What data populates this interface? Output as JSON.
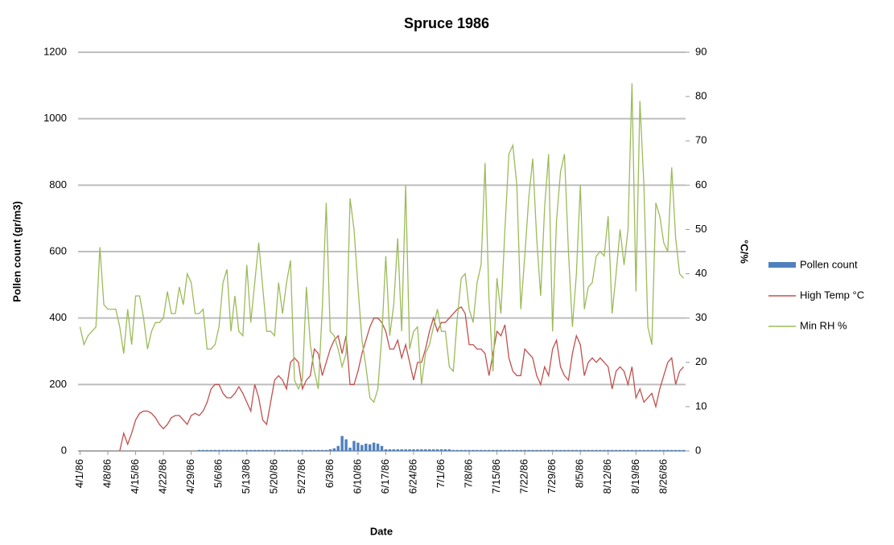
{
  "chart_data": {
    "type": "bar-line",
    "title": "Spruce 1986",
    "x_label": "Date",
    "y_label": "Pollen count (gr/m3)",
    "y2_label": "°C/%",
    "categories": [
      "4/1/86",
      null,
      null,
      null,
      null,
      null,
      null,
      "4/8/86",
      null,
      null,
      null,
      null,
      null,
      null,
      "4/15/86",
      null,
      null,
      null,
      null,
      null,
      null,
      "4/22/86",
      null,
      null,
      null,
      null,
      null,
      null,
      "4/29/86",
      null,
      null,
      null,
      null,
      null,
      null,
      "5/6/86",
      null,
      null,
      null,
      null,
      null,
      null,
      "5/13/86",
      null,
      null,
      null,
      null,
      null,
      null,
      "5/20/86",
      null,
      null,
      null,
      null,
      null,
      null,
      "5/27/86",
      null,
      null,
      null,
      null,
      null,
      null,
      "6/3/86",
      null,
      null,
      null,
      null,
      null,
      null,
      "6/10/86",
      null,
      null,
      null,
      null,
      null,
      null,
      "6/17/86",
      null,
      null,
      null,
      null,
      null,
      null,
      "6/24/86",
      null,
      null,
      null,
      null,
      null,
      null,
      "7/1/86",
      null,
      null,
      null,
      null,
      null,
      null,
      "7/8/86",
      null,
      null,
      null,
      null,
      null,
      null,
      "7/15/86",
      null,
      null,
      null,
      null,
      null,
      null,
      "7/22/86",
      null,
      null,
      null,
      null,
      null,
      null,
      "7/29/86",
      null,
      null,
      null,
      null,
      null,
      null,
      "8/5/86",
      null,
      null,
      null,
      null,
      null,
      null,
      "8/12/86",
      null,
      null,
      null,
      null,
      null,
      null,
      "8/19/86",
      null,
      null,
      null,
      null,
      null,
      null,
      "8/26/86",
      null,
      null,
      null,
      null,
      null
    ],
    "series": [
      {
        "name": "Pollen count",
        "kind": "bar",
        "axis": "y",
        "color": "#4f81bd",
        "values": [
          0,
          0,
          0,
          0,
          0,
          0,
          0,
          0,
          0,
          0,
          0,
          0,
          0,
          0,
          0,
          0,
          0,
          0,
          0,
          0,
          0,
          0,
          0,
          0,
          0,
          0,
          0,
          0,
          0,
          0,
          3,
          3,
          3,
          3,
          3,
          3,
          3,
          3,
          3,
          3,
          3,
          3,
          3,
          3,
          3,
          3,
          3,
          3,
          3,
          3,
          3,
          3,
          3,
          3,
          3,
          3,
          3,
          3,
          3,
          3,
          3,
          3,
          3,
          5,
          8,
          15,
          45,
          35,
          10,
          30,
          25,
          18,
          22,
          20,
          25,
          22,
          15,
          5,
          5,
          5,
          5,
          5,
          5,
          5,
          5,
          5,
          5,
          5,
          5,
          5,
          5,
          5,
          5,
          5,
          3,
          3,
          3,
          3,
          3,
          3,
          3,
          3,
          3,
          3,
          3,
          3,
          3,
          3,
          3,
          3,
          3,
          3,
          3,
          3,
          3,
          3,
          3,
          3,
          3,
          3,
          3,
          3,
          3,
          3,
          3,
          3,
          3,
          3,
          3,
          3,
          3,
          3,
          3,
          3,
          3,
          3,
          3,
          3,
          3,
          3,
          3,
          3,
          3,
          3,
          3,
          3,
          3,
          3,
          3,
          3,
          3,
          3,
          3
        ]
      },
      {
        "name": "High Temp °C",
        "kind": "line",
        "axis": "y2",
        "color": "#c0504d",
        "values": [
          null,
          null,
          null,
          null,
          null,
          null,
          null,
          null,
          null,
          null,
          0,
          4,
          1.5,
          4,
          7,
          8.5,
          9,
          9,
          8.5,
          7.5,
          6,
          5,
          6,
          7.5,
          8,
          8,
          7,
          6,
          8,
          8.5,
          8,
          9,
          11,
          14,
          15,
          15,
          13,
          12,
          12,
          13,
          14.5,
          13,
          11,
          9,
          15,
          12,
          7,
          6,
          11,
          16,
          17,
          16,
          14,
          20,
          21,
          20,
          14,
          16,
          17,
          23,
          22,
          17,
          20,
          23,
          25,
          26,
          22,
          26,
          15,
          15,
          18,
          22,
          25,
          28,
          30,
          30,
          29,
          27,
          23,
          23,
          25,
          21,
          24,
          20,
          16,
          20,
          20,
          23,
          27,
          30,
          27,
          29,
          29,
          30,
          31,
          32,
          32.5,
          31,
          24,
          24,
          23,
          23,
          22,
          17,
          22,
          27,
          26,
          28.5,
          21,
          18,
          17,
          17,
          23,
          22,
          21,
          17,
          15,
          19,
          17,
          23,
          25,
          19,
          17,
          16,
          22,
          26,
          24,
          17,
          20,
          21,
          20,
          21,
          20,
          19,
          14,
          18,
          19,
          18,
          15,
          19,
          12,
          14,
          11,
          12,
          13,
          10,
          14,
          17,
          20,
          21,
          15,
          18,
          19
        ]
      },
      {
        "name": "Min RH %",
        "kind": "line",
        "axis": "y2",
        "color": "#9bbb59",
        "values": [
          28,
          24,
          26,
          27,
          28,
          46,
          33,
          32,
          32,
          32,
          28,
          22,
          32,
          24,
          35,
          35,
          30,
          23,
          27,
          29,
          29,
          30,
          36,
          31,
          31,
          37,
          33,
          40,
          38,
          31,
          31,
          32,
          23,
          23,
          24,
          28,
          38,
          41,
          27,
          35,
          27,
          26,
          42,
          29,
          38,
          47,
          37,
          27,
          27,
          26,
          38,
          31,
          38,
          43,
          16,
          14,
          16,
          37,
          24,
          18,
          14,
          32,
          56,
          27,
          26,
          23,
          19,
          22,
          57,
          50,
          37,
          25,
          19,
          12,
          11,
          14,
          26,
          44,
          26,
          33,
          48,
          27,
          60,
          23,
          27,
          28,
          15,
          22,
          24,
          28,
          32,
          27,
          27,
          19,
          18,
          30,
          39,
          40,
          32,
          29,
          38,
          42,
          65,
          34,
          18,
          39,
          31,
          50,
          67,
          69,
          60,
          32,
          44,
          57,
          66,
          48,
          35,
          55,
          67,
          27,
          52,
          63,
          67,
          45,
          28,
          40,
          60,
          32,
          37,
          38,
          44,
          45,
          44,
          53,
          31,
          40,
          50,
          42,
          50,
          83,
          36,
          79,
          60,
          28,
          24,
          56,
          53,
          47,
          45,
          64,
          48,
          40,
          39
        ]
      }
    ],
    "ylim": [
      0,
      1200
    ],
    "yticks": [
      0,
      200,
      400,
      600,
      800,
      1000,
      1200
    ],
    "y2lim": [
      0,
      90
    ],
    "y2ticks": [
      0,
      10,
      20,
      30,
      40,
      50,
      60,
      70,
      80,
      90
    ],
    "grid": true,
    "legend": "right"
  }
}
